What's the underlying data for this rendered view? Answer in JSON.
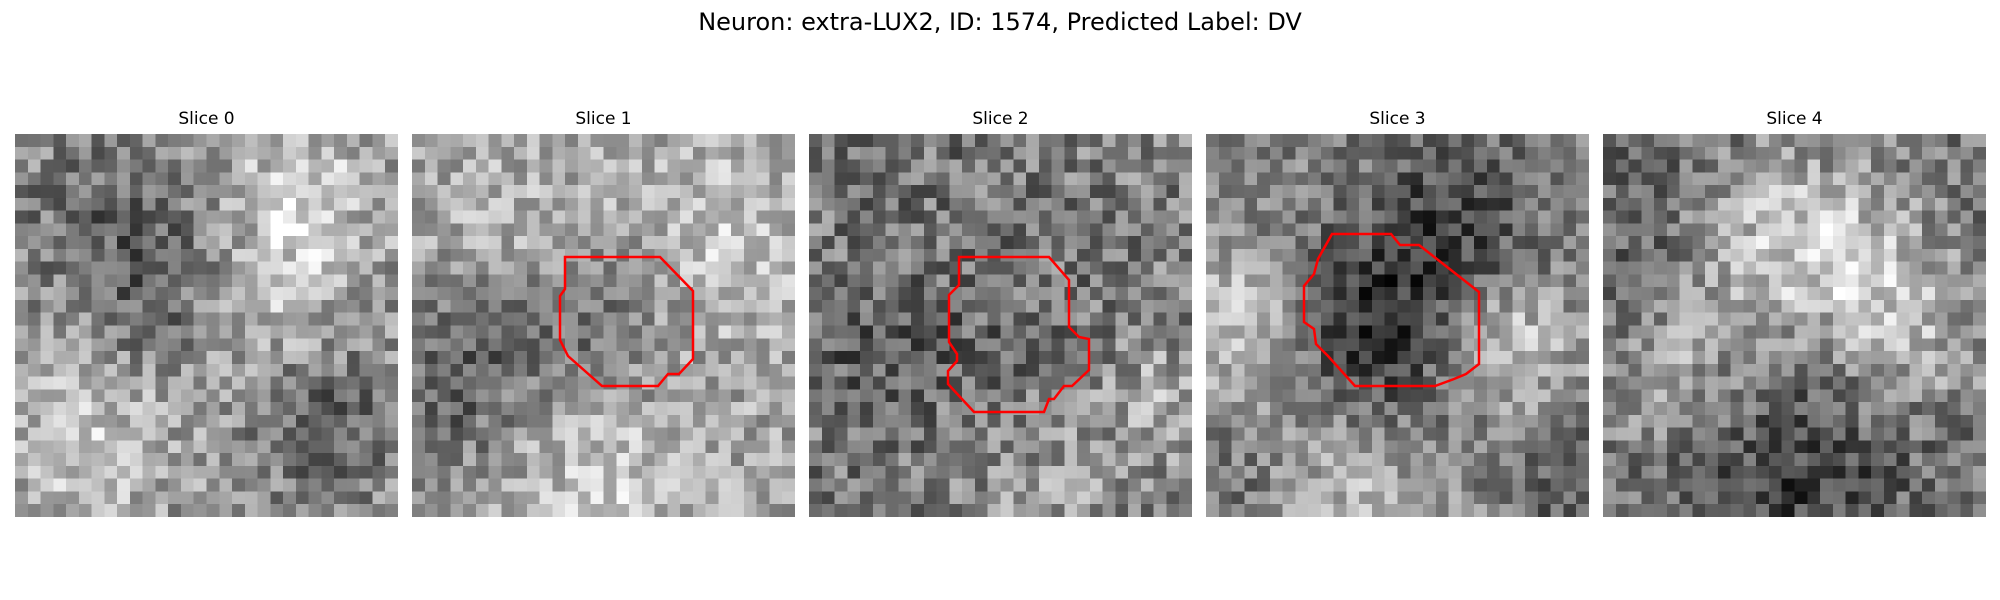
{
  "figure": {
    "title": "Neuron: extra-LUX2, ID: 1574, Predicted Label: DV"
  },
  "slices": [
    {
      "label": "Slice 0",
      "has_contour": false
    },
    {
      "label": "Slice 1",
      "has_contour": true
    },
    {
      "label": "Slice 2",
      "has_contour": true
    },
    {
      "label": "Slice 3",
      "has_contour": true
    },
    {
      "label": "Slice 4",
      "has_contour": false
    }
  ],
  "colors": {
    "contour": "#ff0000",
    "background": "#ffffff",
    "colormap": "gray"
  }
}
